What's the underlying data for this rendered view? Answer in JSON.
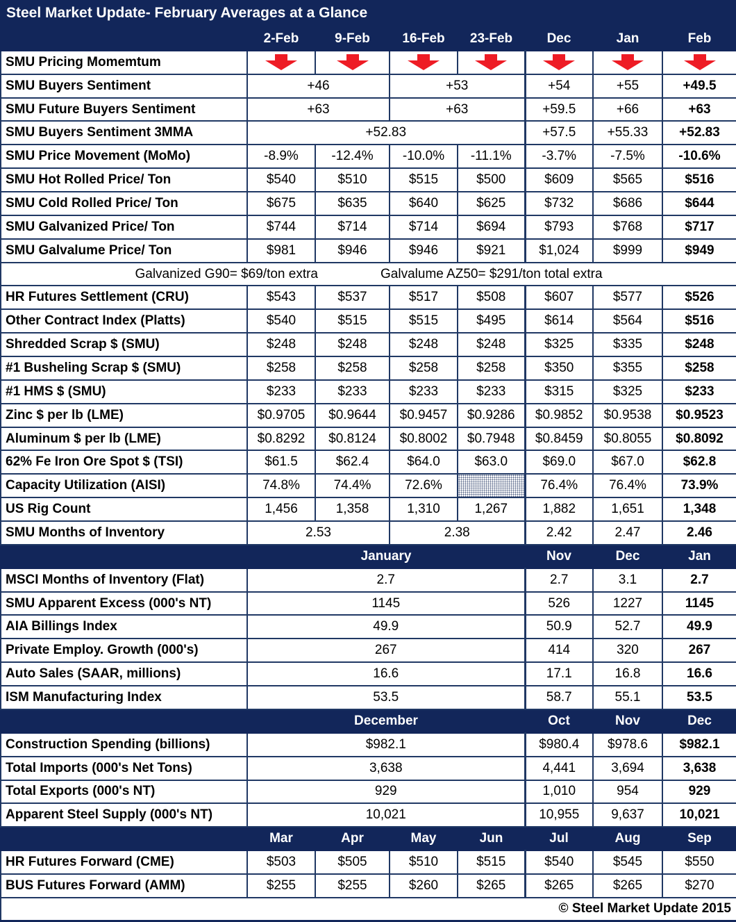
{
  "title": "Steel Market Update- February Averages at a Glance",
  "footer": "© Steel Market Update 2015",
  "colors": {
    "navy": "#12265A",
    "grid": "#203864",
    "arrow_red": "#EE1C25",
    "text": "#000000",
    "white": "#FFFFFF"
  },
  "icons": {
    "down_arrow": "down-arrow-icon"
  },
  "table": {
    "rows": [
      {
        "type": "cols",
        "label": "",
        "cells": [
          {
            "t": "2-Feb"
          },
          {
            "t": "9-Feb"
          },
          {
            "t": "16-Feb"
          },
          {
            "t": "23-Feb"
          },
          {
            "t": "Dec"
          },
          {
            "t": "Jan"
          },
          {
            "t": "Feb"
          }
        ]
      },
      {
        "type": "data",
        "label": "SMU Pricing Momemtum",
        "cells": [
          {
            "icon": "down-arrow"
          },
          {
            "icon": "down-arrow"
          },
          {
            "icon": "down-arrow"
          },
          {
            "icon": "down-arrow"
          },
          {
            "icon": "down-arrow"
          },
          {
            "icon": "down-arrow"
          },
          {
            "icon": "down-arrow"
          }
        ]
      },
      {
        "type": "data",
        "label": "SMU Buyers Sentiment",
        "cells": [
          {
            "t": "+46",
            "s": 2
          },
          {
            "t": "+53",
            "s": 2
          },
          {
            "t": "+54"
          },
          {
            "t": "+55"
          },
          {
            "t": "+49.5",
            "b": true
          }
        ]
      },
      {
        "type": "data",
        "label": "SMU Future Buyers Sentiment",
        "cells": [
          {
            "t": "+63",
            "s": 2
          },
          {
            "t": "+63",
            "s": 2
          },
          {
            "t": "+59.5"
          },
          {
            "t": "+66"
          },
          {
            "t": "+63",
            "b": true
          }
        ]
      },
      {
        "type": "data",
        "label": "SMU Buyers Sentiment 3MMA",
        "cells": [
          {
            "t": "+52.83",
            "s": 4
          },
          {
            "t": "+57.5"
          },
          {
            "t": "+55.33"
          },
          {
            "t": "+52.83",
            "b": true
          }
        ]
      },
      {
        "type": "data",
        "label": "SMU Price Movement (MoMo)",
        "cells": [
          {
            "t": "-8.9%"
          },
          {
            "t": "-12.4%"
          },
          {
            "t": "-10.0%"
          },
          {
            "t": "-11.1%"
          },
          {
            "t": "-3.7%"
          },
          {
            "t": "-7.5%"
          },
          {
            "t": "-10.6%",
            "b": true
          }
        ]
      },
      {
        "type": "data",
        "label": "SMU Hot Rolled Price/ Ton",
        "cells": [
          {
            "t": "$540"
          },
          {
            "t": "$510"
          },
          {
            "t": "$515"
          },
          {
            "t": "$500"
          },
          {
            "t": "$609"
          },
          {
            "t": "$565"
          },
          {
            "t": "$516",
            "b": true
          }
        ]
      },
      {
        "type": "data",
        "label": "SMU Cold Rolled Price/ Ton",
        "cells": [
          {
            "t": "$675"
          },
          {
            "t": "$635"
          },
          {
            "t": "$640"
          },
          {
            "t": "$625"
          },
          {
            "t": "$732"
          },
          {
            "t": "$686"
          },
          {
            "t": "$644",
            "b": true
          }
        ]
      },
      {
        "type": "data",
        "label": "SMU Galvanized Price/ Ton",
        "cells": [
          {
            "t": "$744"
          },
          {
            "t": "$714"
          },
          {
            "t": "$714"
          },
          {
            "t": "$694"
          },
          {
            "t": "$793"
          },
          {
            "t": "$768"
          },
          {
            "t": "$717",
            "b": true
          }
        ]
      },
      {
        "type": "data",
        "label": "SMU Galvalume Price/ Ton",
        "cells": [
          {
            "t": "$981"
          },
          {
            "t": "$946"
          },
          {
            "t": "$946"
          },
          {
            "t": "$921"
          },
          {
            "t": "$1,024"
          },
          {
            "t": "$999"
          },
          {
            "t": "$949",
            "b": true
          }
        ]
      },
      {
        "type": "note",
        "cells": [
          {
            "t": "Galvanized G90= $69/ton extra"
          },
          {
            "t": "Galvalume AZ50= $291/ton total extra"
          }
        ]
      },
      {
        "type": "data",
        "label": "HR Futures Settlement (CRU)",
        "cells": [
          {
            "t": "$543"
          },
          {
            "t": "$537"
          },
          {
            "t": "$517"
          },
          {
            "t": "$508"
          },
          {
            "t": "$607"
          },
          {
            "t": "$577"
          },
          {
            "t": "$526",
            "b": true
          }
        ]
      },
      {
        "type": "data",
        "label": "Other Contract Index (Platts)",
        "cells": [
          {
            "t": "$540"
          },
          {
            "t": "$515"
          },
          {
            "t": "$515"
          },
          {
            "t": "$495"
          },
          {
            "t": "$614"
          },
          {
            "t": "$564"
          },
          {
            "t": "$516",
            "b": true
          }
        ]
      },
      {
        "type": "data",
        "label": "Shredded Scrap $ (SMU)",
        "cells": [
          {
            "t": "$248"
          },
          {
            "t": "$248"
          },
          {
            "t": "$248"
          },
          {
            "t": "$248"
          },
          {
            "t": "$325"
          },
          {
            "t": "$335"
          },
          {
            "t": "$248",
            "b": true
          }
        ]
      },
      {
        "type": "data",
        "label": "#1 Busheling Scrap $ (SMU)",
        "cells": [
          {
            "t": "$258"
          },
          {
            "t": "$258"
          },
          {
            "t": "$258"
          },
          {
            "t": "$258"
          },
          {
            "t": "$350"
          },
          {
            "t": "$355"
          },
          {
            "t": "$258",
            "b": true
          }
        ]
      },
      {
        "type": "data",
        "label": "#1 HMS $ (SMU)",
        "cells": [
          {
            "t": "$233"
          },
          {
            "t": "$233"
          },
          {
            "t": "$233"
          },
          {
            "t": "$233"
          },
          {
            "t": "$315"
          },
          {
            "t": "$325"
          },
          {
            "t": "$233",
            "b": true
          }
        ]
      },
      {
        "type": "data",
        "label": "Zinc $ per lb (LME)",
        "cells": [
          {
            "t": "$0.9705"
          },
          {
            "t": "$0.9644"
          },
          {
            "t": "$0.9457"
          },
          {
            "t": "$0.9286"
          },
          {
            "t": "$0.9852"
          },
          {
            "t": "$0.9538"
          },
          {
            "t": "$0.9523",
            "b": true
          }
        ]
      },
      {
        "type": "data",
        "label": "Aluminum $ per lb (LME)",
        "cells": [
          {
            "t": "$0.8292"
          },
          {
            "t": "$0.8124"
          },
          {
            "t": "$0.8002"
          },
          {
            "t": "$0.7948"
          },
          {
            "t": "$0.8459"
          },
          {
            "t": "$0.8055"
          },
          {
            "t": "$0.8092",
            "b": true
          }
        ]
      },
      {
        "type": "data",
        "label": "62% Fe Iron Ore Spot $ (TSI)",
        "cells": [
          {
            "t": "$61.5"
          },
          {
            "t": "$62.4"
          },
          {
            "t": "$64.0"
          },
          {
            "t": "$63.0"
          },
          {
            "t": "$69.0"
          },
          {
            "t": "$67.0"
          },
          {
            "t": "$62.8",
            "b": true
          }
        ]
      },
      {
        "type": "data",
        "label": "Capacity Utilization (AISI)",
        "cells": [
          {
            "t": "74.8%"
          },
          {
            "t": "74.4%"
          },
          {
            "t": "72.6%"
          },
          {
            "t": "",
            "h": true
          },
          {
            "t": "76.4%"
          },
          {
            "t": "76.4%"
          },
          {
            "t": "73.9%",
            "b": true
          }
        ]
      },
      {
        "type": "data",
        "label": "US Rig Count",
        "cells": [
          {
            "t": "1,456"
          },
          {
            "t": "1,358"
          },
          {
            "t": "1,310"
          },
          {
            "t": "1,267"
          },
          {
            "t": "1,882"
          },
          {
            "t": "1,651"
          },
          {
            "t": "1,348",
            "b": true
          }
        ]
      },
      {
        "type": "data",
        "label": "SMU Months of Inventory",
        "cells": [
          {
            "t": "2.53",
            "s": 2
          },
          {
            "t": "2.38",
            "s": 2
          },
          {
            "t": "2.42"
          },
          {
            "t": "2.47"
          },
          {
            "t": "2.46",
            "b": true
          }
        ]
      },
      {
        "type": "cols",
        "label": "",
        "cells": [
          {
            "t": "January",
            "s": 4
          },
          {
            "t": "Nov"
          },
          {
            "t": "Dec"
          },
          {
            "t": "Jan"
          }
        ]
      },
      {
        "type": "data",
        "label": "MSCI Months of Inventory (Flat)",
        "cells": [
          {
            "t": "2.7",
            "s": 4
          },
          {
            "t": "2.7"
          },
          {
            "t": "3.1"
          },
          {
            "t": "2.7",
            "b": true
          }
        ]
      },
      {
        "type": "data",
        "label": "SMU Apparent Excess (000's NT)",
        "cells": [
          {
            "t": "1145",
            "s": 4
          },
          {
            "t": "526"
          },
          {
            "t": "1227"
          },
          {
            "t": "1145",
            "b": true
          }
        ]
      },
      {
        "type": "data",
        "label": "AIA Billings Index",
        "cells": [
          {
            "t": "49.9",
            "s": 4
          },
          {
            "t": "50.9"
          },
          {
            "t": "52.7"
          },
          {
            "t": "49.9",
            "b": true
          }
        ]
      },
      {
        "type": "data",
        "label": "Private Employ. Growth (000's)",
        "cells": [
          {
            "t": "267",
            "s": 4
          },
          {
            "t": "414"
          },
          {
            "t": "320"
          },
          {
            "t": "267",
            "b": true
          }
        ]
      },
      {
        "type": "data",
        "label": "Auto Sales (SAAR, millions)",
        "cells": [
          {
            "t": "16.6",
            "s": 4
          },
          {
            "t": "17.1"
          },
          {
            "t": "16.8"
          },
          {
            "t": "16.6",
            "b": true
          }
        ]
      },
      {
        "type": "data",
        "label": "ISM Manufacturing Index",
        "cells": [
          {
            "t": "53.5",
            "s": 4
          },
          {
            "t": "58.7"
          },
          {
            "t": "55.1"
          },
          {
            "t": "53.5",
            "b": true
          }
        ]
      },
      {
        "type": "cols",
        "label": "",
        "cells": [
          {
            "t": "December",
            "s": 4
          },
          {
            "t": "Oct"
          },
          {
            "t": "Nov"
          },
          {
            "t": "Dec"
          }
        ]
      },
      {
        "type": "data",
        "label": "Construction Spending (billions)",
        "cells": [
          {
            "t": "$982.1",
            "s": 4
          },
          {
            "t": "$980.4"
          },
          {
            "t": "$978.6"
          },
          {
            "t": "$982.1",
            "b": true
          }
        ]
      },
      {
        "type": "data",
        "label": "Total Imports (000's Net Tons)",
        "cells": [
          {
            "t": "3,638",
            "s": 4
          },
          {
            "t": "4,441"
          },
          {
            "t": "3,694"
          },
          {
            "t": "3,638",
            "b": true
          }
        ]
      },
      {
        "type": "data",
        "label": "Total Exports (000's NT)",
        "cells": [
          {
            "t": "929",
            "s": 4
          },
          {
            "t": "1,010"
          },
          {
            "t": "954"
          },
          {
            "t": "929",
            "b": true
          }
        ]
      },
      {
        "type": "data",
        "label": "Apparent Steel Supply (000's NT)",
        "cells": [
          {
            "t": "10,021",
            "s": 4
          },
          {
            "t": "10,955"
          },
          {
            "t": "9,637"
          },
          {
            "t": "10,021",
            "b": true
          }
        ]
      },
      {
        "type": "cols",
        "label": "",
        "cells": [
          {
            "t": "Mar"
          },
          {
            "t": "Apr"
          },
          {
            "t": "May"
          },
          {
            "t": "Jun"
          },
          {
            "t": "Jul"
          },
          {
            "t": "Aug"
          },
          {
            "t": "Sep"
          }
        ]
      },
      {
        "type": "data",
        "label": "HR Futures Forward (CME)",
        "cells": [
          {
            "t": "$503"
          },
          {
            "t": "$505"
          },
          {
            "t": "$510"
          },
          {
            "t": "$515"
          },
          {
            "t": "$540"
          },
          {
            "t": "$545"
          },
          {
            "t": "$550"
          }
        ]
      },
      {
        "type": "data",
        "label": "BUS Futures Forward (AMM)",
        "cells": [
          {
            "t": "$255"
          },
          {
            "t": "$255"
          },
          {
            "t": "$260"
          },
          {
            "t": "$265"
          },
          {
            "t": "$265"
          },
          {
            "t": "$265"
          },
          {
            "t": "$270"
          }
        ]
      },
      {
        "type": "footer"
      }
    ]
  }
}
